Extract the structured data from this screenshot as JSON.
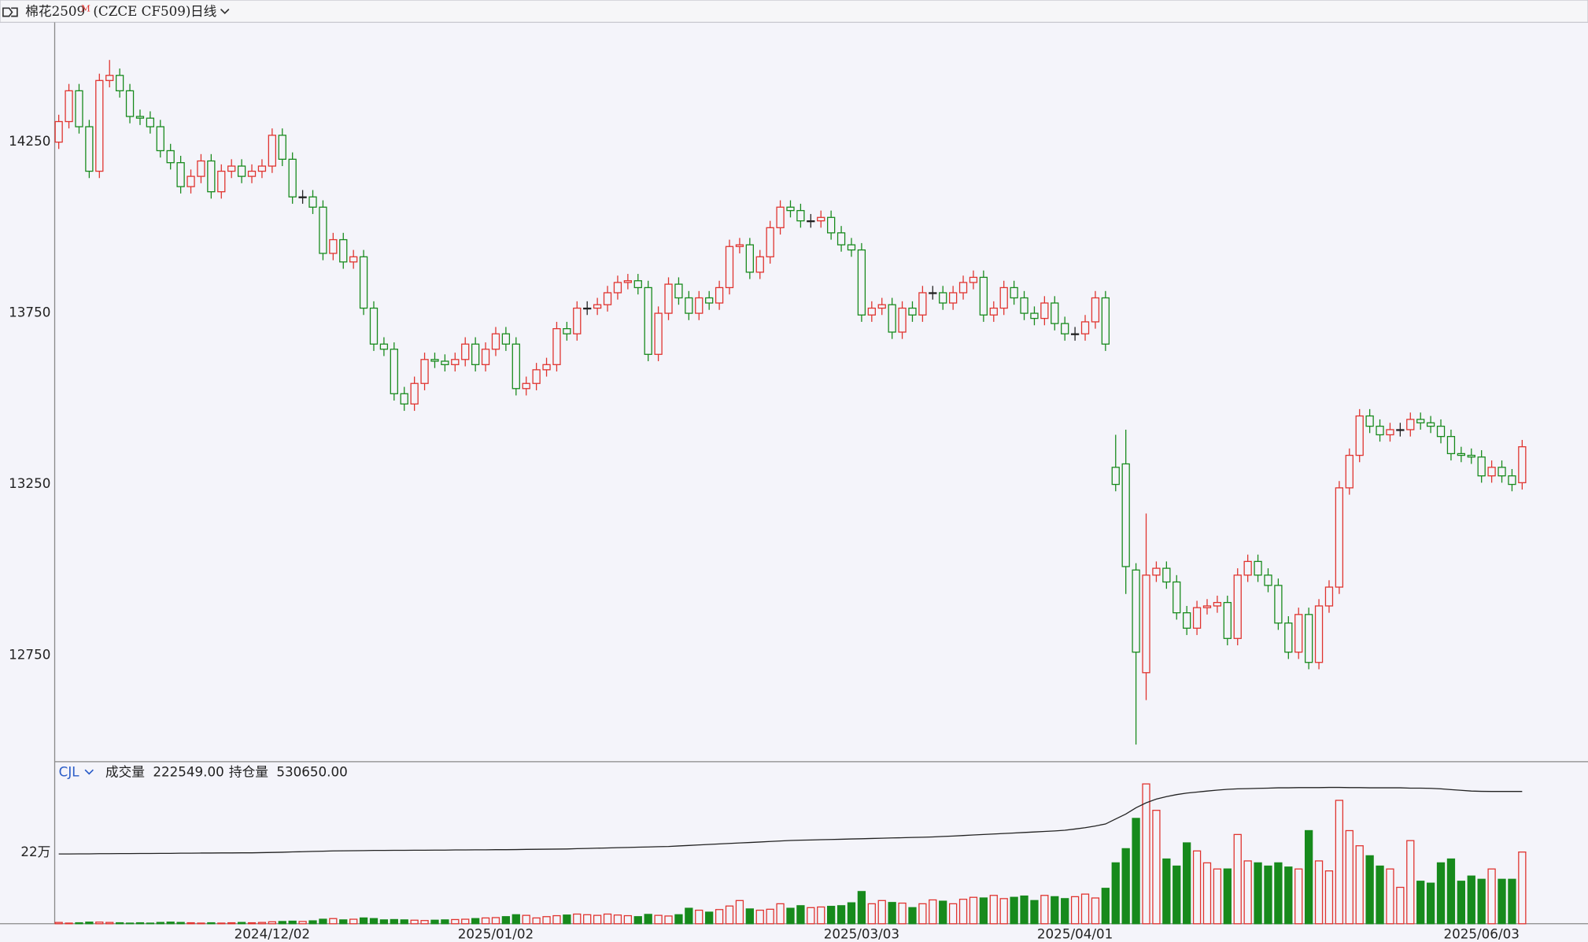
{
  "chart_data": {
    "type": "candlestick",
    "title": "棉花2509",
    "title_sup": "M",
    "subtitle": "(CZCE CF509)",
    "period": "日线",
    "categories": [
      null,
      null,
      null,
      null,
      null,
      null,
      null,
      null,
      null,
      null,
      null,
      null,
      null,
      null,
      null,
      null,
      null,
      null,
      null,
      null,
      null,
      "2024/12/02",
      null,
      null,
      null,
      null,
      null,
      null,
      null,
      null,
      null,
      null,
      null,
      null,
      null,
      null,
      null,
      null,
      null,
      null,
      null,
      null,
      null,
      "2025/01/02",
      null,
      null,
      null,
      null,
      null,
      null,
      null,
      null,
      null,
      null,
      null,
      null,
      null,
      null,
      null,
      null,
      null,
      null,
      null,
      null,
      null,
      null,
      null,
      null,
      null,
      null,
      null,
      null,
      null,
      null,
      null,
      null,
      null,
      null,
      null,
      "2025/03/03",
      null,
      null,
      null,
      null,
      null,
      null,
      null,
      null,
      null,
      null,
      null,
      null,
      null,
      null,
      null,
      null,
      null,
      null,
      null,
      null,
      "2025/04/01",
      null,
      null,
      null,
      null,
      null,
      null,
      null,
      null,
      null,
      null,
      null,
      null,
      null,
      null,
      null,
      null,
      null,
      null,
      null,
      null,
      null,
      null,
      null,
      null,
      null,
      null,
      null,
      null,
      null,
      null,
      null,
      null,
      null,
      null,
      null,
      null,
      null,
      null,
      null,
      "2025/06/03",
      null,
      null,
      null,
      null
    ],
    "open": [
      14250,
      14310,
      14400,
      14295,
      14165,
      14430,
      14445,
      14400,
      14325,
      14320,
      14295,
      14225,
      14190,
      14120,
      14150,
      14195,
      14105,
      14165,
      14180,
      14150,
      14165,
      14180,
      14270,
      14200,
      14090,
      14090,
      14060,
      13925,
      13965,
      13900,
      13915,
      13765,
      13660,
      13645,
      13515,
      13485,
      13545,
      13615,
      13610,
      13600,
      13615,
      13660,
      13600,
      13645,
      13690,
      13660,
      13530,
      13545,
      13585,
      13600,
      13705,
      13690,
      13765,
      13765,
      13775,
      13810,
      13840,
      13845,
      13825,
      13630,
      13750,
      13835,
      13795,
      13750,
      13795,
      13780,
      13825,
      13945,
      13950,
      13870,
      13915,
      14000,
      14060,
      14050,
      14020,
      14020,
      14030,
      13985,
      13950,
      13935,
      13745,
      13765,
      13775,
      13695,
      13765,
      13745,
      13810,
      13810,
      13780,
      13810,
      13840,
      13855,
      13745,
      13765,
      13825,
      13795,
      13750,
      13735,
      13780,
      13720,
      13690,
      13690,
      13725,
      13795,
      13300,
      13310,
      13000,
      12700,
      12985,
      13005,
      12965,
      12875,
      12830,
      12890,
      12895,
      12905,
      12800,
      12985,
      13025,
      12985,
      12955,
      12845,
      12760,
      12870,
      12730,
      12895,
      12950,
      13240,
      13335,
      13450,
      13420,
      13395,
      13410,
      13410,
      13440,
      13430,
      13420,
      13390,
      13340,
      13335,
      13330,
      13275,
      13300,
      13275,
      13255
    ],
    "high": [
      14330,
      14420,
      14420,
      14315,
      14450,
      14490,
      14465,
      14420,
      14345,
      14340,
      14315,
      14245,
      14210,
      14170,
      14215,
      14215,
      14185,
      14200,
      14200,
      14185,
      14200,
      14290,
      14290,
      14220,
      14110,
      14110,
      14080,
      13985,
      13985,
      13935,
      13935,
      13785,
      13680,
      13665,
      13535,
      13565,
      13635,
      13635,
      13630,
      13635,
      13680,
      13680,
      13665,
      13710,
      13710,
      13680,
      13565,
      13605,
      13620,
      13725,
      13725,
      13785,
      13785,
      13795,
      13830,
      13860,
      13865,
      13865,
      13845,
      13770,
      13855,
      13855,
      13815,
      13815,
      13815,
      13845,
      13965,
      13970,
      13970,
      13935,
      14020,
      14080,
      14080,
      14070,
      14040,
      14050,
      14050,
      14005,
      13970,
      13955,
      13785,
      13795,
      13795,
      13785,
      13785,
      13830,
      13830,
      13830,
      13830,
      13860,
      13875,
      13875,
      13785,
      13845,
      13845,
      13815,
      13770,
      13800,
      13800,
      13740,
      13710,
      13745,
      13815,
      13815,
      13395,
      13410,
      13020,
      13165,
      13025,
      13025,
      12985,
      12895,
      12910,
      12915,
      12925,
      12925,
      13005,
      13045,
      13045,
      13005,
      12975,
      12865,
      12890,
      12890,
      12915,
      12970,
      13260,
      13355,
      13470,
      13470,
      13440,
      13430,
      13430,
      13460,
      13460,
      13450,
      13440,
      13410,
      13360,
      13355,
      13350,
      13320,
      13320,
      13295,
      13380
    ],
    "low": [
      14230,
      14290,
      14275,
      14145,
      14145,
      14410,
      14380,
      14305,
      14300,
      14275,
      14205,
      14170,
      14100,
      14100,
      14130,
      14085,
      14085,
      14145,
      14130,
      14130,
      14145,
      14160,
      14180,
      14070,
      14070,
      14040,
      13905,
      13905,
      13880,
      13880,
      13745,
      13640,
      13625,
      13495,
      13465,
      13465,
      13525,
      13590,
      13580,
      13580,
      13595,
      13580,
      13580,
      13625,
      13640,
      13510,
      13510,
      13525,
      13565,
      13580,
      13670,
      13670,
      13745,
      13745,
      13755,
      13790,
      13820,
      13805,
      13610,
      13610,
      13730,
      13775,
      13730,
      13730,
      13760,
      13760,
      13805,
      13925,
      13850,
      13850,
      13895,
      13980,
      14030,
      14000,
      14000,
      14000,
      13965,
      13930,
      13915,
      13725,
      13725,
      13745,
      13675,
      13675,
      13725,
      13725,
      13790,
      13760,
      13760,
      13790,
      13820,
      13725,
      13725,
      13745,
      13775,
      13730,
      13715,
      13715,
      13700,
      13670,
      13670,
      13670,
      13705,
      13640,
      13230,
      12930,
      12490,
      12620,
      12965,
      12945,
      12855,
      12810,
      12810,
      12870,
      12875,
      12780,
      12780,
      12965,
      12965,
      12935,
      12825,
      12740,
      12740,
      12710,
      12710,
      12875,
      12930,
      13220,
      13315,
      13400,
      13375,
      13375,
      13390,
      13390,
      13410,
      13400,
      13370,
      13320,
      13315,
      13310,
      13255,
      13255,
      13255,
      13230,
      13235
    ],
    "close": [
      14310,
      14400,
      14295,
      14165,
      14430,
      14445,
      14400,
      14325,
      14320,
      14295,
      14225,
      14190,
      14120,
      14150,
      14195,
      14105,
      14165,
      14180,
      14150,
      14165,
      14180,
      14270,
      14200,
      14090,
      14090,
      14060,
      13925,
      13965,
      13900,
      13915,
      13765,
      13660,
      13645,
      13515,
      13485,
      13545,
      13615,
      13610,
      13600,
      13615,
      13660,
      13600,
      13645,
      13690,
      13660,
      13530,
      13545,
      13585,
      13600,
      13705,
      13690,
      13765,
      13765,
      13775,
      13810,
      13840,
      13845,
      13825,
      13630,
      13750,
      13835,
      13795,
      13750,
      13795,
      13780,
      13825,
      13945,
      13950,
      13870,
      13915,
      14000,
      14060,
      14050,
      14020,
      14020,
      14030,
      13985,
      13950,
      13935,
      13745,
      13765,
      13775,
      13695,
      13765,
      13745,
      13810,
      13810,
      13780,
      13810,
      13840,
      13855,
      13745,
      13765,
      13825,
      13795,
      13750,
      13735,
      13780,
      13720,
      13690,
      13690,
      13725,
      13795,
      13660,
      13250,
      13010,
      12760,
      12985,
      13005,
      12965,
      12875,
      12830,
      12890,
      12895,
      12905,
      12800,
      12985,
      13025,
      12985,
      12955,
      12845,
      12760,
      12870,
      12730,
      12895,
      12950,
      13240,
      13335,
      13450,
      13420,
      13395,
      13410,
      13410,
      13440,
      13430,
      13420,
      13390,
      13340,
      13335,
      13330,
      13275,
      13300,
      13275,
      13250,
      13360
    ],
    "up_color": "#e0332e",
    "down_color": "#178a1c",
    "ylim": [
      12440,
      14600
    ],
    "yticks": [
      12750,
      13250,
      13750,
      14250
    ],
    "grid": false,
    "indicator": "CJL",
    "volume": {
      "name": "成交量",
      "value_label": "222549.00",
      "ylim": [
        0,
        503000
      ],
      "yticks": [
        {
          "value": 220000,
          "label": "22万"
        }
      ],
      "values": [
        4000,
        2000,
        3000,
        5000,
        5000,
        4000,
        3000,
        2000,
        3000,
        2000,
        4000,
        5000,
        4000,
        3000,
        2000,
        3000,
        2000,
        3000,
        4000,
        3000,
        4000,
        6000,
        7000,
        8000,
        7000,
        9000,
        14000,
        16000,
        12000,
        14000,
        18000,
        16000,
        12000,
        13000,
        12000,
        11000,
        10000,
        11000,
        12000,
        13000,
        14000,
        16000,
        18000,
        19000,
        22000,
        28000,
        26000,
        18000,
        22000,
        25000,
        27000,
        30000,
        28000,
        26000,
        30000,
        27000,
        25000,
        22000,
        29000,
        26000,
        24000,
        28000,
        48000,
        42000,
        36000,
        44000,
        55000,
        72000,
        46000,
        42000,
        45000,
        62000,
        48000,
        56000,
        50000,
        52000,
        54000,
        56000,
        65000,
        100000,
        62000,
        72000,
        66000,
        64000,
        50000,
        62000,
        74000,
        70000,
        62000,
        76000,
        82000,
        80000,
        88000,
        78000,
        82000,
        86000,
        72000,
        88000,
        84000,
        78000,
        84000,
        92000,
        80000,
        110000,
        189000,
        233000,
        327000,
        434000,
        352000,
        201000,
        179000,
        251000,
        226000,
        189000,
        170000,
        170000,
        277000,
        195000,
        189000,
        179000,
        189000,
        176000,
        170000,
        289000,
        195000,
        164000,
        383000,
        289000,
        242000,
        211000,
        179000,
        170000,
        113000,
        258000,
        132000,
        126000,
        189000,
        201000,
        132000,
        148000,
        138000,
        170000,
        138000,
        138000,
        222549
      ]
    },
    "open_interest": {
      "name": "持仓量",
      "value_label": "530650.00",
      "color": "#222222",
      "axis": "y2",
      "y2lim": [
        0,
        650000
      ],
      "values": [
        280000,
        280000,
        280500,
        280500,
        281000,
        281000,
        281500,
        281500,
        282000,
        282000,
        282500,
        282500,
        283000,
        283000,
        283500,
        283500,
        284000,
        284000,
        284500,
        284500,
        285000,
        286000,
        287000,
        288000,
        289000,
        290000,
        291000,
        292000,
        292500,
        293000,
        293500,
        294000,
        294000,
        294500,
        294500,
        295000,
        295000,
        295500,
        295500,
        296000,
        296000,
        296500,
        296500,
        297000,
        297000,
        297500,
        298000,
        298500,
        299000,
        299500,
        300000,
        301000,
        302000,
        303000,
        304000,
        305000,
        306000,
        307000,
        308000,
        309000,
        310000,
        312000,
        314000,
        316000,
        318000,
        320000,
        322000,
        324000,
        326000,
        328000,
        330000,
        332000,
        334000,
        335000,
        336000,
        337000,
        338000,
        339000,
        340000,
        341000,
        342000,
        343000,
        344000,
        345000,
        346000,
        347000,
        348000,
        350000,
        352000,
        354000,
        356000,
        358000,
        360000,
        362000,
        364000,
        366000,
        368000,
        370000,
        372000,
        375000,
        380000,
        385000,
        392000,
        400000,
        420000,
        440000,
        465000,
        485000,
        500000,
        510000,
        518000,
        524000,
        528000,
        532000,
        536000,
        539000,
        541000,
        542000,
        543000,
        544000,
        545000,
        545000,
        546000,
        546000,
        546000,
        547000,
        547000,
        546000,
        546000,
        545000,
        545000,
        545000,
        545000,
        544000,
        544000,
        543000,
        541000,
        538000,
        535000,
        532000,
        531000,
        530500,
        530500,
        530600,
        530650
      ]
    }
  }
}
